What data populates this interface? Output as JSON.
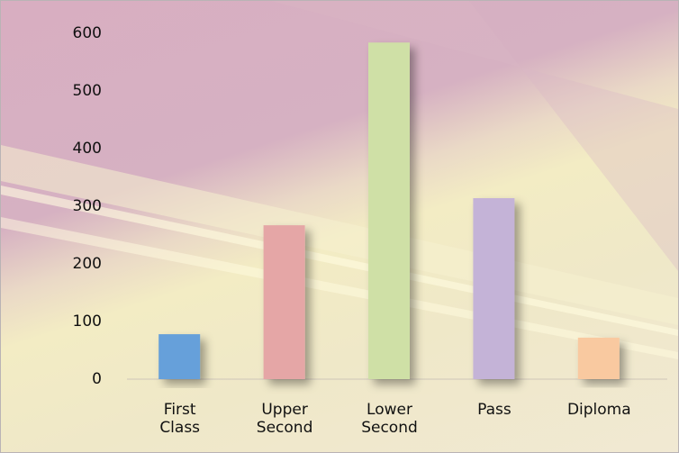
{
  "chart_data": {
    "type": "bar",
    "categories": [
      "First Class",
      "Upper Second",
      "Lower Second",
      "Pass",
      "Diploma"
    ],
    "values": [
      78,
      267,
      584,
      314,
      72
    ],
    "colors": [
      "#66a0da",
      "#e5a6a6",
      "#cfe0a6",
      "#c4b3d7",
      "#f9c9a0"
    ],
    "ylim": [
      0,
      600
    ],
    "yticks": [
      0,
      100,
      200,
      300,
      400,
      500,
      600
    ],
    "grid": false
  }
}
